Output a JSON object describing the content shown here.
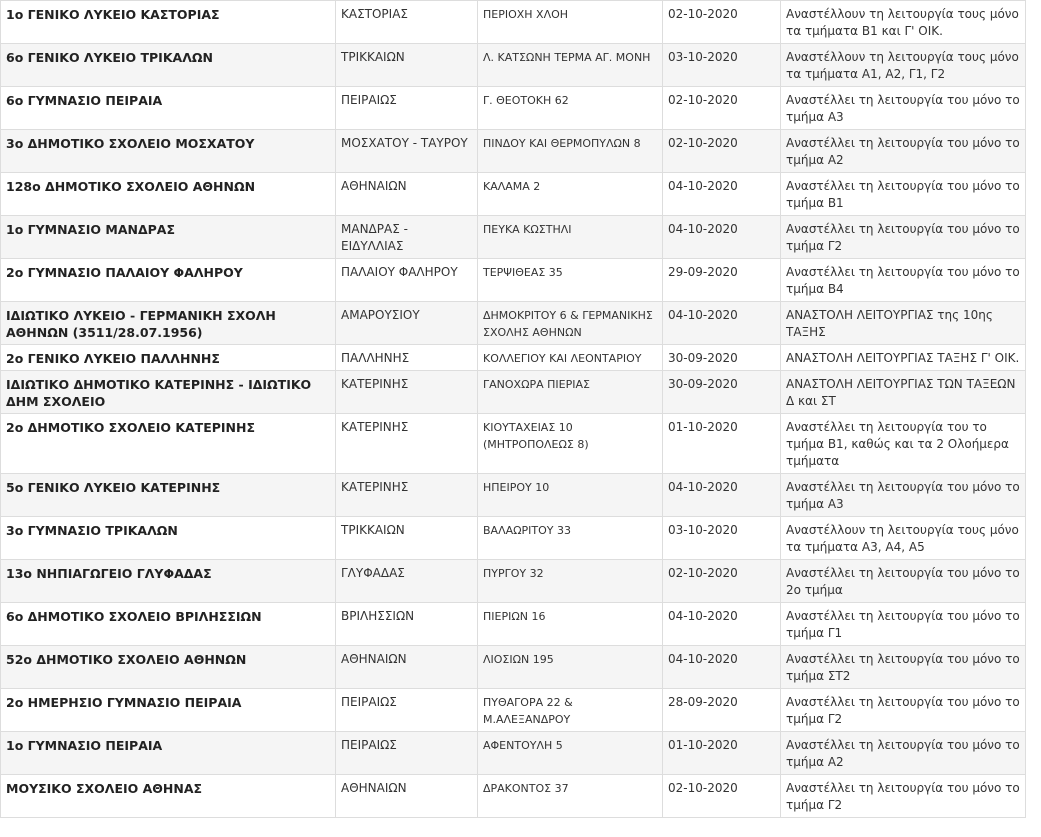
{
  "table": {
    "rows": [
      [
        "1ο ΓΕΝΙΚΟ ΛΥΚΕΙΟ ΚΑΣΤΟΡΙΑΣ",
        "ΚΑΣΤΟΡΙΑΣ",
        "ΠΕΡΙΟΧΗ ΧΛΟΗ",
        "02-10-2020",
        "Αναστέλλουν τη λειτουργία τους μόνο τα τμήματα Β1 και Γ' ΟΙΚ."
      ],
      [
        "6ο ΓΕΝΙΚΟ ΛΥΚΕΙΟ ΤΡΙΚΑΛΩΝ",
        "ΤΡΙΚΚΑΙΩΝ",
        "Λ. ΚΑΤΣΩΝΗ ΤΕΡΜΑ ΑΓ. ΜΟΝΗ",
        "03-10-2020",
        "Αναστέλλουν τη λειτουργία τους μόνο τα τμήματα Α1, Α2, Γ1, Γ2"
      ],
      [
        "6ο ΓΥΜΝΑΣΙΟ ΠΕΙΡΑΙΑ",
        "ΠΕΙΡΑΙΩΣ",
        "Γ. ΘΕΟΤΟΚΗ 62",
        "02-10-2020",
        "Αναστέλλει τη λειτουργία του μόνο το τμήμα Α3"
      ],
      [
        "3ο ΔΗΜΟΤΙΚΟ ΣΧΟΛΕΙΟ ΜΟΣΧΑΤΟΥ",
        "ΜΟΣΧΑΤΟΥ - ΤΑΥΡΟΥ",
        "ΠΙΝΔΟΥ ΚΑΙ ΘΕΡΜΟΠΥΛΩΝ 8",
        "02-10-2020",
        "Αναστέλλει τη λειτουργία του μόνο το τμήμα Α2"
      ],
      [
        "128ο ΔΗΜΟΤΙΚΟ ΣΧΟΛΕΙΟ ΑΘΗΝΩΝ",
        "ΑΘΗΝΑΙΩΝ",
        "ΚΑΛΑΜΑ 2",
        "04-10-2020",
        "Αναστέλλει τη λειτουργία του μόνο το τμήμα Β1"
      ],
      [
        "1ο ΓΥΜΝΑΣΙΟ ΜΑΝΔΡΑΣ",
        "ΜΑΝΔΡΑΣ - ΕΙΔΥΛΛΙΑΣ",
        "ΠΕΥΚΑ ΚΩΣΤΗΛΙ",
        "04-10-2020",
        "Αναστέλλει τη λειτουργία του μόνο το τμήμα Γ2"
      ],
      [
        "2ο ΓΥΜΝΑΣΙΟ ΠΑΛΑΙΟΥ ΦΑΛΗΡΟΥ",
        "ΠΑΛΑΙΟΥ ΦΑΛΗΡΟΥ",
        "ΤΕΡΨΙΘΕΑΣ 35",
        "29-09-2020",
        "Αναστέλλει τη λειτουργία του μόνο το τμήμα Β4"
      ],
      [
        "ΙΔΙΩΤΙΚΟ ΛΥΚΕΙΟ - ΓΕΡΜΑΝΙΚΗ ΣΧΟΛΗ ΑΘΗΝΩΝ (3511/28.07.1956)",
        "ΑΜΑΡΟΥΣΙΟΥ",
        "ΔΗΜΟΚΡΙΤΟΥ 6 & ΓΕΡΜΑΝΙΚΗΣ ΣΧΟΛΗΣ ΑΘΗΝΩΝ",
        "04-10-2020",
        "ΑΝΑΣΤΟΛΗ ΛΕΙΤΟΥΡΓΙΑΣ της 10ης ΤΑΞΗΣ"
      ],
      [
        "2ο ΓΕΝΙΚΟ ΛΥΚΕΙΟ ΠΑΛΛΗΝΗΣ",
        "ΠΑΛΛΗΝΗΣ",
        "ΚΟΛΛΕΓΙΟΥ ΚΑΙ ΛΕΟΝΤΑΡΙΟΥ",
        "30-09-2020",
        "ΑΝΑΣΤΟΛΗ ΛΕΙΤΟΥΡΓΙΑΣ ΤΑΞΗΣ Γ' ΟΙΚ."
      ],
      [
        "ΙΔΙΩΤΙΚΟ ΔΗΜΟΤΙΚΟ ΚΑΤΕΡΙΝΗΣ - ΙΔΙΩΤΙΚΟ ΔΗΜ ΣΧΟΛΕΙΟ",
        "ΚΑΤΕΡΙΝΗΣ",
        "ΓΑΝΟΧΩΡΑ ΠΙΕΡΙΑΣ",
        "30-09-2020",
        "ΑΝΑΣΤΟΛΗ ΛΕΙΤΟΥΡΓΙΑΣ ΤΩΝ ΤΑΞΕΩΝ Δ και ΣΤ"
      ],
      [
        "2ο ΔΗΜΟΤΙΚΟ ΣΧΟΛΕΙΟ ΚΑΤΕΡΙΝΗΣ",
        "ΚΑΤΕΡΙΝΗΣ",
        "ΚΙΟΥΤΑΧΕΙΑΣ 10 (ΜΗΤΡΟΠΟΛΕΩΣ 8)",
        "01-10-2020",
        "Αναστέλλει τη λειτουργία του το τμήμα Β1, καθώς και τα 2 Ολοήμερα τμήματα"
      ],
      [
        "5ο ΓΕΝΙΚΟ ΛΥΚΕΙΟ ΚΑΤΕΡΙΝΗΣ",
        "ΚΑΤΕΡΙΝΗΣ",
        "ΗΠΕΙΡΟΥ 10",
        "04-10-2020",
        "Αναστέλλει τη λειτουργία του μόνο το τμήμα Α3"
      ],
      [
        "3ο ΓΥΜΝΑΣΙΟ ΤΡΙΚΑΛΩΝ",
        "ΤΡΙΚΚΑΙΩΝ",
        "ΒΑΛΑΩΡΙΤΟΥ 33",
        "03-10-2020",
        "Αναστέλλουν τη λειτουργία τους μόνο τα τμήματα Α3, Α4, Α5"
      ],
      [
        "13ο ΝΗΠΙΑΓΩΓΕΙΟ ΓΛΥΦΑΔΑΣ",
        "ΓΛΥΦΑΔΑΣ",
        "ΠΥΡΓΟΥ 32",
        "02-10-2020",
        "Αναστέλλει τη λειτουργία του μόνο το 2ο τμήμα"
      ],
      [
        "6ο ΔΗΜΟΤΙΚΟ ΣΧΟΛΕΙΟ ΒΡΙΛΗΣΣΙΩΝ",
        "ΒΡΙΛΗΣΣΙΩΝ",
        "ΠΙΕΡΙΩΝ 16",
        "04-10-2020",
        "Αναστέλλει τη λειτουργία του μόνο το τμήμα Γ1"
      ],
      [
        "52ο ΔΗΜΟΤΙΚΟ ΣΧΟΛΕΙΟ ΑΘΗΝΩΝ",
        "ΑΘΗΝΑΙΩΝ",
        "ΛΙΟΣΙΩΝ 195",
        "04-10-2020",
        "Αναστέλλει τη λειτουργία του μόνο το τμήμα ΣΤ2"
      ],
      [
        "2ο ΗΜΕΡΗΣΙΟ ΓΥΜΝΑΣΙΟ ΠΕΙΡΑΙΑ",
        "ΠΕΙΡΑΙΩΣ",
        "ΠΥΘΑΓΟΡΑ 22 & Μ.ΑΛΕΞΑΝΔΡΟΥ",
        "28-09-2020",
        "Αναστέλλει τη λειτουργία του μόνο το τμήμα Γ2"
      ],
      [
        "1ο ΓΥΜΝΑΣΙΟ ΠΕΙΡΑΙΑ",
        "ΠΕΙΡΑΙΩΣ",
        "ΑΦΕΝΤΟΥΛΗ 5",
        "01-10-2020",
        "Αναστέλλει τη λειτουργία του μόνο το τμήμα Α2"
      ],
      [
        "ΜΟΥΣΙΚΟ ΣΧΟΛΕΙΟ ΑΘΗΝΑΣ",
        "ΑΘΗΝΑΙΩΝ",
        "ΔΡΑΚΟΝΤΟΣ 37",
        "02-10-2020",
        "Αναστέλλει τη λειτουργία του μόνο το τμήμα Γ2"
      ]
    ]
  }
}
